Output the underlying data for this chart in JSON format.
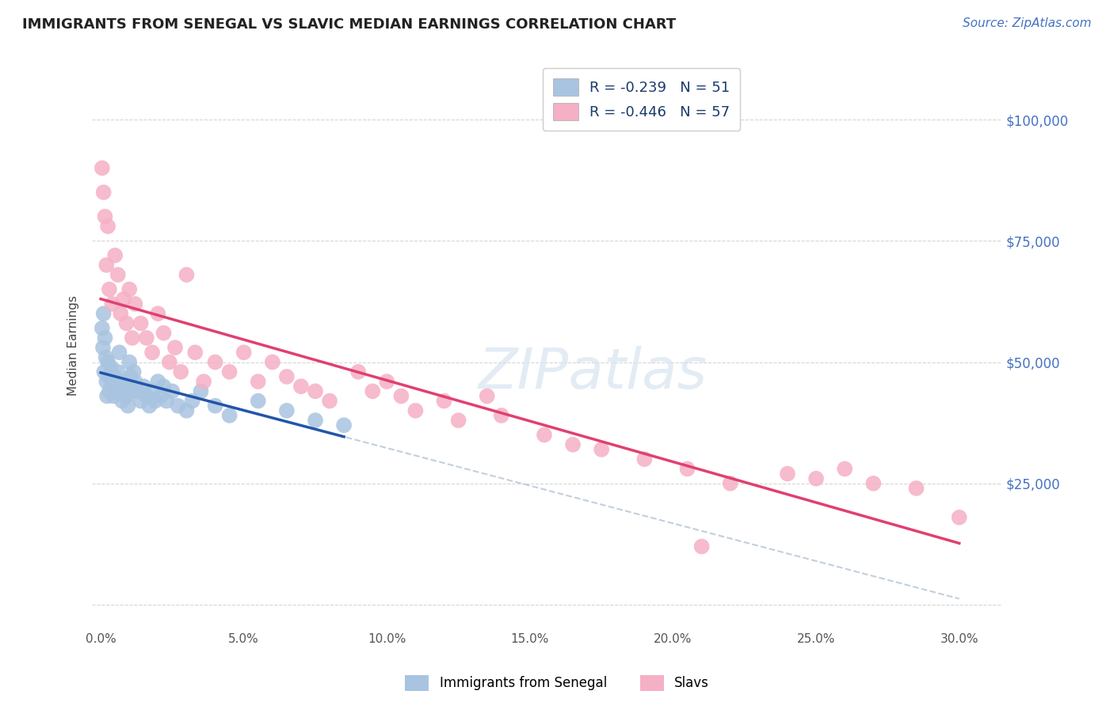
{
  "title": "IMMIGRANTS FROM SENEGAL VS SLAVIC MEDIAN EARNINGS CORRELATION CHART",
  "source": "Source: ZipAtlas.com",
  "xlabel_vals": [
    0.0,
    5.0,
    10.0,
    15.0,
    20.0,
    25.0,
    30.0
  ],
  "ylabel_ticks": [
    0,
    25000,
    50000,
    75000,
    100000
  ],
  "ylabel_right_labels": [
    "",
    "$25,000",
    "$50,000",
    "$75,000",
    "$100,000"
  ],
  "xlim": [
    -0.3,
    31.5
  ],
  "ylim": [
    -5000,
    112000
  ],
  "series1_label": "Immigrants from Senegal",
  "series1_color": "#a8c4e0",
  "series1_line_color": "#2255aa",
  "series1_R": -0.239,
  "series1_N": 51,
  "series2_label": "Slavs",
  "series2_color": "#f5b0c5",
  "series2_line_color": "#e04070",
  "series2_R": -0.446,
  "series2_N": 57,
  "background_color": "#ffffff",
  "grid_color": "#cccccc",
  "title_color": "#222222",
  "source_color": "#4472c4",
  "legend_text_color": "#222222",
  "legend_value_color": "#e04070",
  "senegal_x": [
    0.05,
    0.08,
    0.1,
    0.12,
    0.15,
    0.18,
    0.2,
    0.22,
    0.25,
    0.28,
    0.3,
    0.35,
    0.4,
    0.45,
    0.5,
    0.55,
    0.6,
    0.65,
    0.7,
    0.75,
    0.8,
    0.85,
    0.9,
    0.95,
    1.0,
    1.05,
    1.1,
    1.15,
    1.2,
    1.3,
    1.4,
    1.5,
    1.6,
    1.7,
    1.8,
    1.9,
    2.0,
    2.1,
    2.2,
    2.3,
    2.5,
    2.7,
    3.0,
    3.2,
    3.5,
    4.0,
    4.5,
    5.5,
    6.5,
    7.5,
    8.5
  ],
  "senegal_y": [
    57000,
    53000,
    60000,
    48000,
    55000,
    51000,
    46000,
    43000,
    50000,
    47000,
    44000,
    49000,
    46000,
    43000,
    47000,
    44000,
    48000,
    52000,
    45000,
    42000,
    44000,
    46000,
    43000,
    41000,
    50000,
    47000,
    44000,
    48000,
    46000,
    44000,
    42000,
    45000,
    43000,
    41000,
    44000,
    42000,
    46000,
    43000,
    45000,
    42000,
    44000,
    41000,
    40000,
    42000,
    44000,
    41000,
    39000,
    42000,
    40000,
    38000,
    37000
  ],
  "slavs_x": [
    0.05,
    0.1,
    0.15,
    0.2,
    0.25,
    0.3,
    0.4,
    0.5,
    0.6,
    0.7,
    0.8,
    0.9,
    1.0,
    1.1,
    1.2,
    1.4,
    1.6,
    1.8,
    2.0,
    2.2,
    2.4,
    2.6,
    2.8,
    3.0,
    3.3,
    3.6,
    4.0,
    4.5,
    5.0,
    5.5,
    6.0,
    6.5,
    7.0,
    7.5,
    8.0,
    9.0,
    9.5,
    10.0,
    10.5,
    11.0,
    12.0,
    12.5,
    13.5,
    14.0,
    15.5,
    16.5,
    17.5,
    19.0,
    20.5,
    21.0,
    22.0,
    24.0,
    25.0,
    26.0,
    27.0,
    28.5,
    30.0
  ],
  "slavs_y": [
    90000,
    85000,
    80000,
    70000,
    78000,
    65000,
    62000,
    72000,
    68000,
    60000,
    63000,
    58000,
    65000,
    55000,
    62000,
    58000,
    55000,
    52000,
    60000,
    56000,
    50000,
    53000,
    48000,
    68000,
    52000,
    46000,
    50000,
    48000,
    52000,
    46000,
    50000,
    47000,
    45000,
    44000,
    42000,
    48000,
    44000,
    46000,
    43000,
    40000,
    42000,
    38000,
    43000,
    39000,
    35000,
    33000,
    32000,
    30000,
    28000,
    12000,
    25000,
    27000,
    26000,
    28000,
    25000,
    24000,
    18000
  ],
  "dashed_line_color": "#aabbcc",
  "senegal_line_x_start": 0.0,
  "senegal_line_x_end": 30.0,
  "slavs_line_x_start": 0.0,
  "slavs_line_x_end": 30.0
}
